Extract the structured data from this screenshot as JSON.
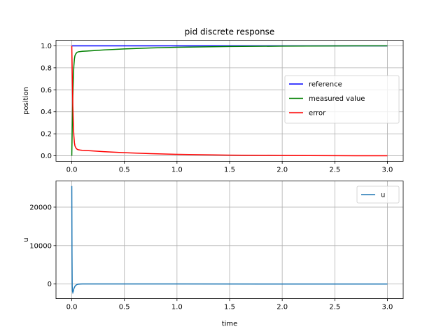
{
  "chart_data": [
    {
      "type": "line",
      "title": "pid discrete response",
      "xlabel": "",
      "ylabel": "position",
      "xlim": [
        -0.15,
        3.15
      ],
      "ylim": [
        -0.05,
        1.05
      ],
      "xticks": [
        0.0,
        0.5,
        1.0,
        1.5,
        2.0,
        2.5,
        3.0
      ],
      "xtick_labels": [
        "0.0",
        "0.5",
        "1.0",
        "1.5",
        "2.0",
        "2.5",
        "3.0"
      ],
      "yticks": [
        0.0,
        0.2,
        0.4,
        0.6,
        0.8,
        1.0
      ],
      "ytick_labels": [
        "0.0",
        "0.2",
        "0.4",
        "0.6",
        "0.8",
        "1.0"
      ],
      "grid": true,
      "legend": "center-right",
      "series": [
        {
          "name": "reference",
          "color": "#0000ff",
          "x": [
            0.0,
            3.0
          ],
          "y": [
            1.0,
            1.0
          ]
        },
        {
          "name": "measured value",
          "color": "#008000",
          "x": [
            0.0,
            0.005,
            0.01,
            0.015,
            0.02,
            0.025,
            0.03,
            0.04,
            0.05,
            0.06,
            0.08,
            0.1,
            0.15,
            0.2,
            0.3,
            0.5,
            0.75,
            1.0,
            1.5,
            2.0,
            2.5,
            3.0
          ],
          "y": [
            0.0,
            0.3,
            0.55,
            0.72,
            0.82,
            0.88,
            0.91,
            0.93,
            0.94,
            0.945,
            0.948,
            0.95,
            0.953,
            0.956,
            0.962,
            0.972,
            0.981,
            0.987,
            0.994,
            0.997,
            0.999,
            1.0
          ]
        },
        {
          "name": "error",
          "color": "#ff0000",
          "x": [
            0.0,
            0.005,
            0.01,
            0.015,
            0.02,
            0.025,
            0.03,
            0.04,
            0.05,
            0.06,
            0.08,
            0.1,
            0.15,
            0.2,
            0.3,
            0.5,
            0.75,
            1.0,
            1.5,
            2.0,
            2.5,
            3.0
          ],
          "y": [
            1.0,
            0.7,
            0.45,
            0.28,
            0.18,
            0.12,
            0.09,
            0.07,
            0.06,
            0.055,
            0.052,
            0.05,
            0.047,
            0.044,
            0.038,
            0.028,
            0.019,
            0.013,
            0.006,
            0.003,
            0.001,
            0.0
          ]
        }
      ]
    },
    {
      "type": "line",
      "title": "",
      "xlabel": "time",
      "ylabel": "u",
      "xlim": [
        -0.15,
        3.15
      ],
      "ylim": [
        -3800,
        26800
      ],
      "xticks": [
        0.0,
        0.5,
        1.0,
        1.5,
        2.0,
        2.5,
        3.0
      ],
      "xtick_labels": [
        "0.0",
        "0.5",
        "1.0",
        "1.5",
        "2.0",
        "2.5",
        "3.0"
      ],
      "yticks": [
        0,
        10000,
        20000
      ],
      "ytick_labels": [
        "0",
        "10000",
        "20000"
      ],
      "grid": true,
      "legend": "top-right",
      "series": [
        {
          "name": "u",
          "color": "#1f77b4",
          "x": [
            0.0,
            0.002,
            0.004,
            0.006,
            0.01,
            0.015,
            0.02,
            0.03,
            0.04,
            0.05,
            0.06,
            0.08,
            0.1,
            0.2,
            1.0,
            2.0,
            3.0
          ],
          "y": [
            25500,
            8000,
            -500,
            -1800,
            -2200,
            -1800,
            -1200,
            -600,
            -300,
            -120,
            -40,
            0,
            20,
            15,
            10,
            5,
            0
          ]
        }
      ]
    }
  ]
}
